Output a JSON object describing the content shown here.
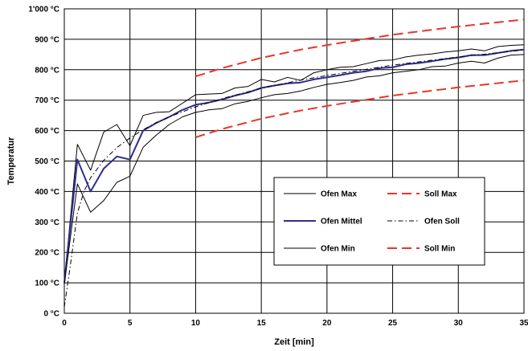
{
  "chart_data": {
    "type": "line",
    "xlabel": "Zeit [min]",
    "ylabel": "Temperatur",
    "xlim": [
      0,
      35
    ],
    "ylim": [
      0,
      1000
    ],
    "x_ticks": [
      {
        "value": 0,
        "label": "0"
      },
      {
        "value": 5,
        "label": "5"
      },
      {
        "value": 10,
        "label": "10"
      },
      {
        "value": 15,
        "label": "15"
      },
      {
        "value": 20,
        "label": "20"
      },
      {
        "value": 25,
        "label": "25"
      },
      {
        "value": 30,
        "label": "30"
      },
      {
        "value": 35,
        "label": "35"
      }
    ],
    "y_ticks": [
      {
        "value": 0,
        "label": "0 °C"
      },
      {
        "value": 100,
        "label": "100 °C"
      },
      {
        "value": 200,
        "label": "200 °C"
      },
      {
        "value": 300,
        "label": "300 °C"
      },
      {
        "value": 400,
        "label": "400 °C"
      },
      {
        "value": 500,
        "label": "500 °C"
      },
      {
        "value": 600,
        "label": "600 °C"
      },
      {
        "value": 700,
        "label": "700 °C"
      },
      {
        "value": 800,
        "label": "800 °C"
      },
      {
        "value": 900,
        "label": "900 °C"
      },
      {
        "value": 1000,
        "label": "1'000 °C"
      }
    ],
    "grid": true,
    "legend_position": "center-right",
    "series": [
      {
        "name": "Ofen Max",
        "color": "#000000",
        "style": "solid",
        "x": [
          0,
          1,
          2,
          3,
          4,
          5,
          6,
          7,
          8,
          9,
          10,
          11,
          12,
          13,
          14,
          15,
          16,
          17,
          18,
          19,
          20,
          21,
          22,
          23,
          24,
          25,
          26,
          27,
          28,
          29,
          30,
          31,
          32,
          33,
          34,
          35
        ],
        "y": [
          100,
          555,
          470,
          595,
          620,
          550,
          650,
          660,
          662,
          690,
          718,
          720,
          722,
          740,
          745,
          768,
          760,
          775,
          765,
          790,
          800,
          808,
          810,
          820,
          830,
          832,
          842,
          848,
          852,
          858,
          862,
          868,
          862,
          876,
          880,
          882
        ]
      },
      {
        "name": "Ofen Mittel",
        "color": "#2e2e8c",
        "style": "solid",
        "x": [
          0,
          1,
          2,
          3,
          4,
          5,
          6,
          7,
          8,
          9,
          10,
          11,
          12,
          13,
          14,
          15,
          16,
          17,
          18,
          19,
          20,
          21,
          22,
          23,
          24,
          25,
          26,
          27,
          28,
          29,
          30,
          31,
          32,
          33,
          34,
          35
        ],
        "y": [
          100,
          505,
          400,
          475,
          515,
          505,
          600,
          625,
          645,
          668,
          685,
          692,
          702,
          715,
          725,
          740,
          748,
          755,
          758,
          768,
          775,
          782,
          790,
          795,
          805,
          808,
          818,
          822,
          828,
          835,
          840,
          848,
          848,
          855,
          862,
          866
        ]
      },
      {
        "name": "Ofen Min",
        "color": "#000000",
        "style": "solid",
        "x": [
          0,
          1,
          2,
          3,
          4,
          5,
          6,
          7,
          8,
          9,
          10,
          11,
          12,
          13,
          14,
          15,
          16,
          17,
          18,
          19,
          20,
          21,
          22,
          23,
          24,
          25,
          26,
          27,
          28,
          29,
          30,
          31,
          32,
          33,
          34,
          35
        ],
        "y": [
          95,
          425,
          332,
          370,
          430,
          450,
          545,
          585,
          620,
          645,
          660,
          668,
          672,
          688,
          696,
          708,
          718,
          722,
          730,
          742,
          752,
          758,
          765,
          776,
          780,
          790,
          795,
          800,
          810,
          812,
          822,
          828,
          822,
          838,
          848,
          850
        ]
      },
      {
        "name": "Ofen Soll",
        "color": "#000000",
        "style": "dashdot",
        "x": [
          0,
          0.5,
          1,
          1.5,
          2,
          3,
          4,
          5,
          6,
          7,
          8,
          10,
          12,
          15,
          18,
          20,
          25,
          30,
          35
        ],
        "y": [
          20,
          170,
          329,
          400,
          445,
          502,
          544,
          576,
          603,
          626,
          645,
          678,
          705,
          739,
          766,
          781,
          815,
          842,
          865
        ]
      },
      {
        "name": "Soll Max",
        "color": "#e8352a",
        "style": "dashed",
        "x": [
          10,
          12,
          15,
          18,
          20,
          25,
          30,
          35
        ],
        "y": [
          778,
          805,
          839,
          866,
          881,
          915,
          942,
          965
        ]
      },
      {
        "name": "Soll Min",
        "color": "#e8352a",
        "style": "dashed",
        "x": [
          10,
          12,
          15,
          18,
          20,
          25,
          30,
          35
        ],
        "y": [
          578,
          605,
          639,
          666,
          681,
          715,
          742,
          765
        ]
      }
    ],
    "legend": [
      {
        "label": "Ofen Max",
        "series": "Ofen Max"
      },
      {
        "label": "Soll Max",
        "series": "Soll Max"
      },
      {
        "label": "Ofen Mittel",
        "series": "Ofen Mittel"
      },
      {
        "label": "Ofen Soll",
        "series": "Ofen Soll"
      },
      {
        "label": "Ofen Min",
        "series": "Ofen Min"
      },
      {
        "label": "Soll Min",
        "series": "Soll Min"
      }
    ]
  }
}
